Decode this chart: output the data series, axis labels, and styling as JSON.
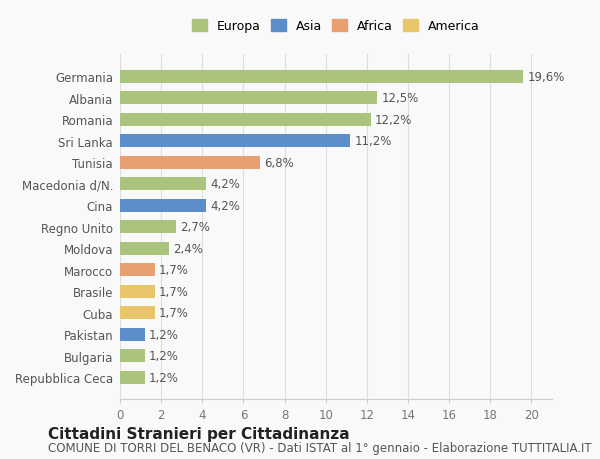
{
  "categories": [
    "Repubblica Ceca",
    "Bulgaria",
    "Pakistan",
    "Cuba",
    "Brasile",
    "Marocco",
    "Moldova",
    "Regno Unito",
    "Cina",
    "Macedonia d/N.",
    "Tunisia",
    "Sri Lanka",
    "Romania",
    "Albania",
    "Germania"
  ],
  "values": [
    1.2,
    1.2,
    1.2,
    1.7,
    1.7,
    1.7,
    2.4,
    2.7,
    4.2,
    4.2,
    6.8,
    11.2,
    12.2,
    12.5,
    19.6
  ],
  "labels": [
    "1,2%",
    "1,2%",
    "1,2%",
    "1,7%",
    "1,7%",
    "1,7%",
    "2,4%",
    "2,7%",
    "4,2%",
    "4,2%",
    "6,8%",
    "11,2%",
    "12,2%",
    "12,5%",
    "19,6%"
  ],
  "colors": [
    "#aac47e",
    "#aac47e",
    "#5b8dc9",
    "#e8c46a",
    "#e8c46a",
    "#e8a070",
    "#aac47e",
    "#aac47e",
    "#5b8dc9",
    "#aac47e",
    "#e8a070",
    "#5b8dc9",
    "#aac47e",
    "#aac47e",
    "#aac47e"
  ],
  "continent_colors": {
    "Europa": "#aac47e",
    "Asia": "#5b8dc9",
    "Africa": "#e8a070",
    "America": "#e8c46a"
  },
  "xlim": [
    0,
    21
  ],
  "xticks": [
    0,
    2,
    4,
    6,
    8,
    10,
    12,
    14,
    16,
    18,
    20
  ],
  "title": "Cittadini Stranieri per Cittadinanza",
  "subtitle": "COMUNE DI TORRI DEL BENACO (VR) - Dati ISTAT al 1° gennaio - Elaborazione TUTTITALIA.IT",
  "background_color": "#f9f9f9",
  "bar_height": 0.6,
  "label_fontsize": 8.5,
  "tick_fontsize": 8.5,
  "title_fontsize": 11,
  "subtitle_fontsize": 8.5
}
